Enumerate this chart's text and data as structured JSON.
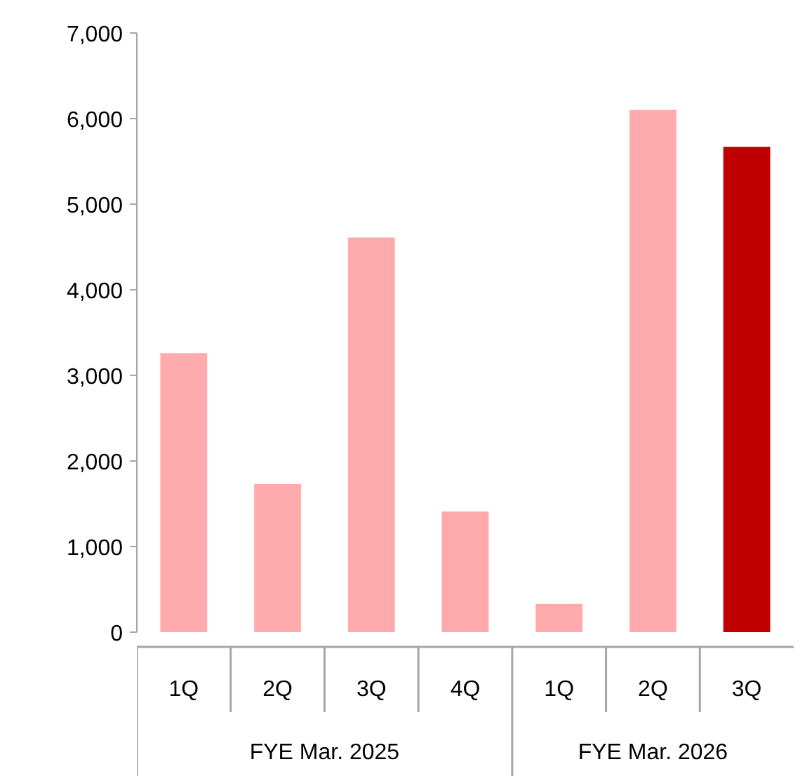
{
  "chart_data": {
    "type": "bar",
    "categories": [
      "1Q",
      "2Q",
      "3Q",
      "4Q",
      "1Q",
      "2Q",
      "3Q"
    ],
    "values": [
      3260,
      1730,
      4610,
      1410,
      330,
      6100,
      5670
    ],
    "colors": [
      "#ffabad",
      "#ffabad",
      "#ffabad",
      "#ffabad",
      "#ffabad",
      "#ffabad",
      "#c00000"
    ],
    "annotations": [
      "FYE Mar. 2025",
      "FYE Mar. 2026"
    ],
    "ylim": [
      0,
      7000
    ],
    "yticks": [
      0,
      {
        "value": 1000,
        "label": "1,000"
      },
      {
        "value": 2000,
        "label": "2,000"
      },
      {
        "value": 3000,
        "label": "3,000"
      },
      {
        "value": 4000,
        "label": "4,000"
      },
      {
        "value": 5000,
        "label": "5,000"
      },
      {
        "value": 6000,
        "label": "6,000"
      },
      {
        "value": 7000,
        "label": "7,000"
      }
    ],
    "grid": false
  }
}
